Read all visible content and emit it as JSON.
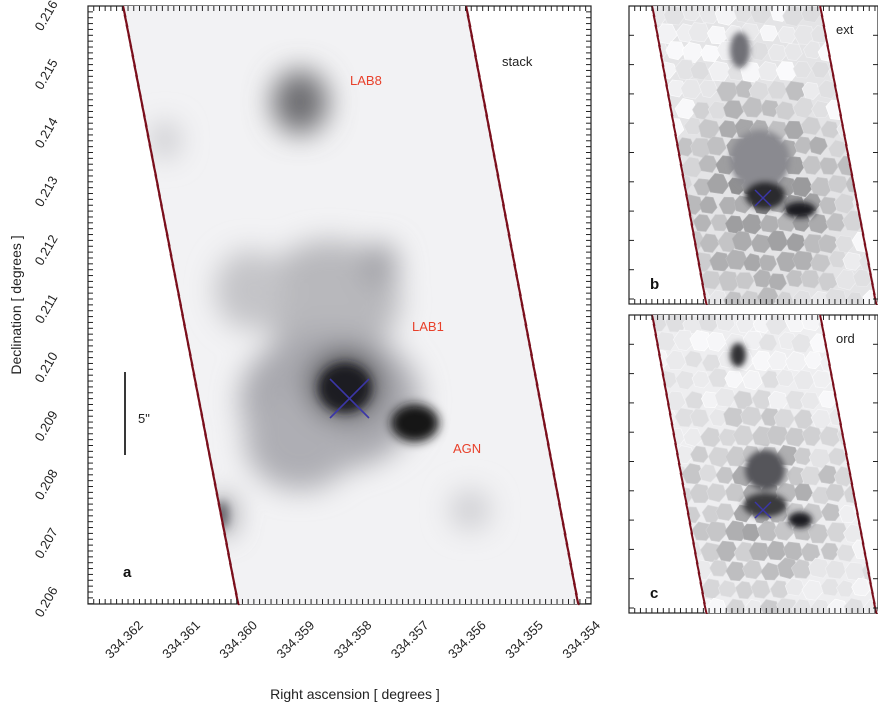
{
  "chart_data": [
    {
      "type": "image",
      "panel": "a",
      "xlabel": "Right ascension [ degrees ]",
      "ylabel": "Declination [ degrees ]",
      "xlim": [
        334.3628,
        334.354
      ],
      "ylim": [
        0.206,
        0.2162
      ],
      "x_ticks": [
        "334.362",
        "334.361",
        "334.360",
        "334.359",
        "334.358",
        "334.357",
        "334.356",
        "334.355",
        "334.354"
      ],
      "y_ticks": [
        "0.206",
        "0.207",
        "0.208",
        "0.209",
        "0.210",
        "0.211",
        "0.212",
        "0.213",
        "0.214",
        "0.215",
        "0.216"
      ],
      "annotations": [
        {
          "text": "stack",
          "color": "#222222"
        },
        {
          "text": "LAB8",
          "color": "#e8402a",
          "x": 334.3569,
          "y": 0.215
        },
        {
          "text": "LAB1",
          "color": "#e8402a",
          "x": 334.3566,
          "y": 0.2109
        },
        {
          "text": "AGN",
          "color": "#e8402a",
          "x": 334.3558,
          "y": 0.2088
        },
        {
          "text": "5\"",
          "color": "#222222"
        },
        {
          "text": "a",
          "color": "#111111"
        }
      ],
      "cross_marker": {
        "x": 334.3582,
        "y": 0.2097,
        "color": "#3b36a8"
      }
    },
    {
      "type": "image",
      "panel": "b",
      "annotations": [
        {
          "text": "ext",
          "color": "#222222"
        },
        {
          "text": "b",
          "color": "#111111"
        }
      ]
    },
    {
      "type": "image",
      "panel": "c",
      "annotations": [
        {
          "text": "ord",
          "color": "#222222"
        },
        {
          "text": "c",
          "color": "#111111"
        }
      ]
    }
  ],
  "colors": {
    "boundary": "#7a0f1c",
    "cross": "#3b36a8",
    "label_red": "#e8402a"
  }
}
